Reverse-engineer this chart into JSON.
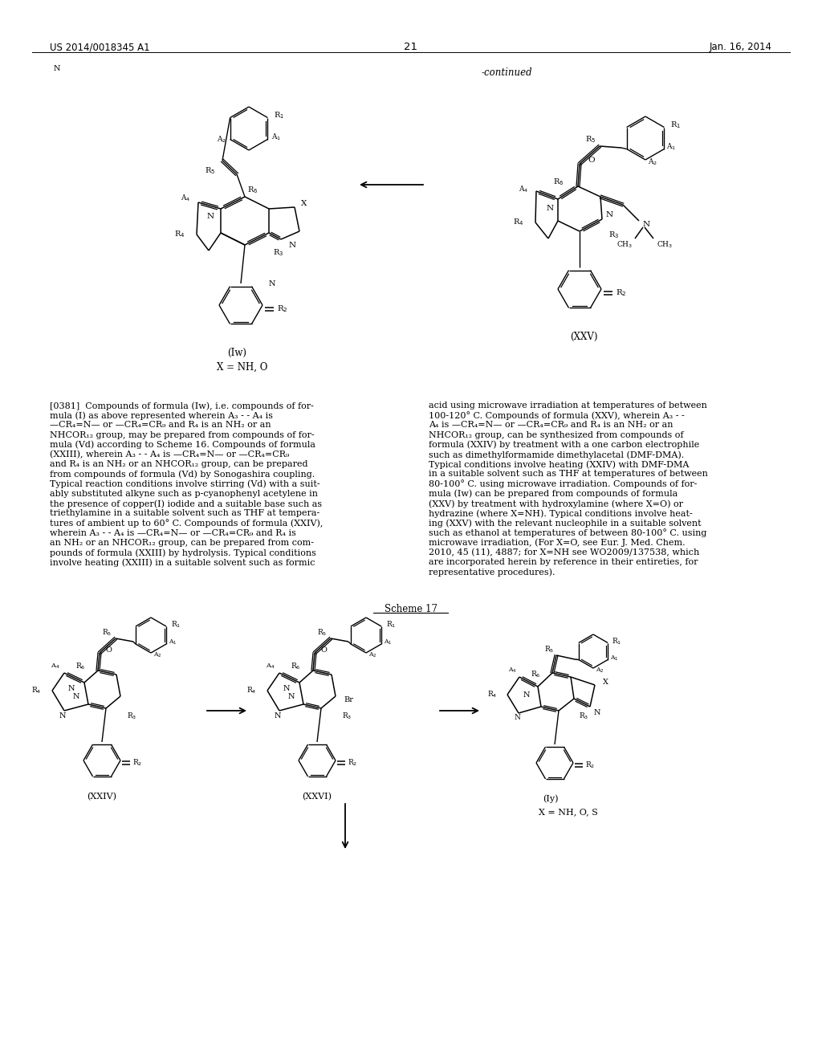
{
  "page_number": "21",
  "patent_number": "US 2014/0018345 A1",
  "patent_date": "Jan. 16, 2014",
  "continued_label": "-continued",
  "scheme_label": "Scheme 17",
  "background_color": "#ffffff",
  "col1_lines": [
    "[0381]  Compounds of formula (Iw), i.e. compounds of for-",
    "mula (I) as above represented wherein A₃ - - A₄ is",
    "—CR₄=N— or —CR₄=CR₉ and R₄ is an NH₂ or an",
    "NHCOR₁₂ group, may be prepared from compounds of for-",
    "mula (Vd) according to Scheme 16. Compounds of formula",
    "(XXIII), wherein A₃ - - A₄ is —CR₄=N— or —CR₄=CR₉",
    "and R₄ is an NH₂ or an NHCOR₁₂ group, can be prepared",
    "from compounds of formula (Vd) by Sonogashira coupling.",
    "Typical reaction conditions involve stirring (Vd) with a suit-",
    "ably substituted alkyne such as p-cyanophenyl acetylene in",
    "the presence of copper(I) iodide and a suitable base such as",
    "triethylamine in a suitable solvent such as THF at tempera-",
    "tures of ambient up to 60° C. Compounds of formula (XXIV),",
    "wherein A₃ - - A₄ is —CR₄=N— or —CR₄=CR₉ and R₄ is",
    "an NH₂ or an NHCOR₁₂ group, can be prepared from com-",
    "pounds of formula (XXIII) by hydrolysis. Typical conditions",
    "involve heating (XXIII) in a suitable solvent such as formic"
  ],
  "col2_lines": [
    "acid using microwave irradiation at temperatures of between",
    "100-120° C. Compounds of formula (XXV), wherein A₃ - -",
    "A₄ is —CR₄=N— or —CR₄=CR₉ and R₄ is an NH₂ or an",
    "NHCOR₁₂ group, can be synthesized from compounds of",
    "formula (XXIV) by treatment with a one carbon electrophile",
    "such as dimethylformamide dimethylacetal (DMF-DMA).",
    "Typical conditions involve heating (XXIV) with DMF-DMA",
    "in a suitable solvent such as THF at temperatures of between",
    "80-100° C. using microwave irradiation. Compounds of for-",
    "mula (Iw) can be prepared from compounds of formula",
    "(XXV) by treatment with hydroxylamine (where X=O) or",
    "hydrazine (where X=NH). Typical conditions involve heat-",
    "ing (XXV) with the relevant nucleophile in a suitable solvent",
    "such as ethanol at temperatures of between 80-100° C. using",
    "microwave irradiation, (For X=O, see Eur. J. Med. Chem.",
    "2010, 45 (11), 4887; for X=NH see WO2009/137538, which",
    "are incorporated herein by reference in their entireties, for",
    "representative procedures)."
  ]
}
